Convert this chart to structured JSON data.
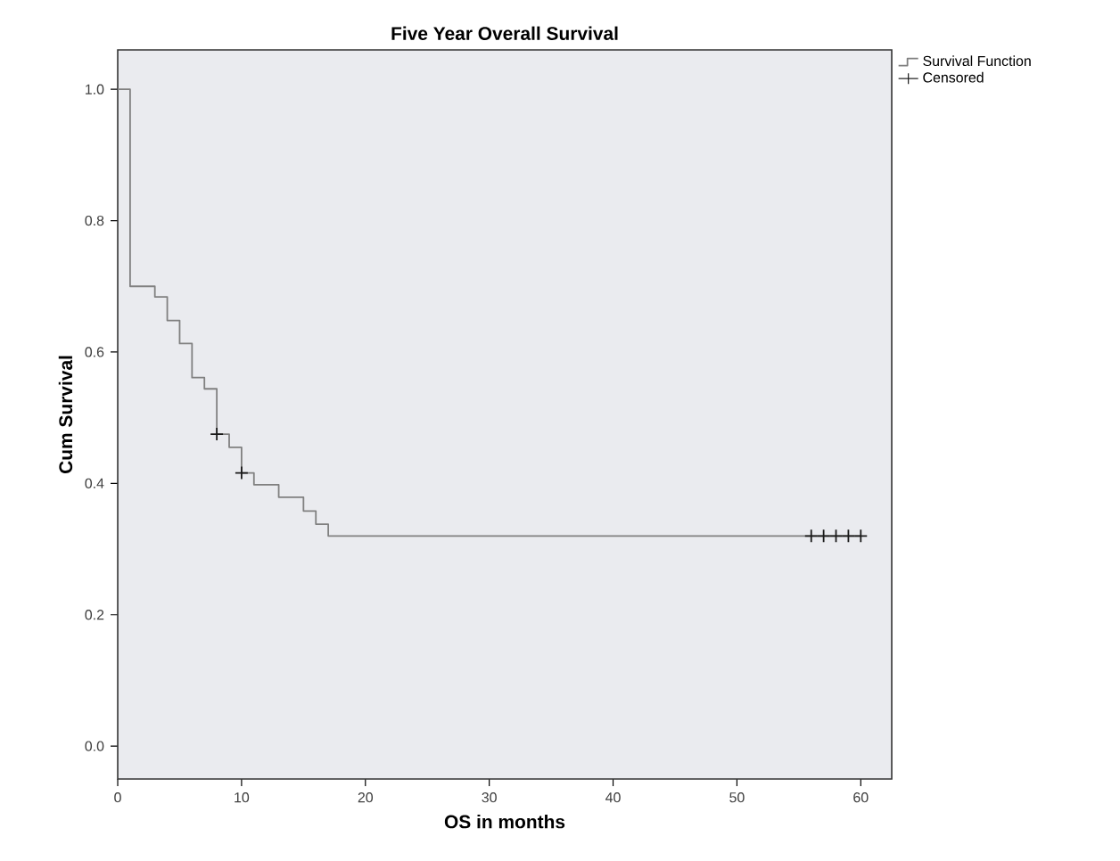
{
  "chart_data": {
    "type": "step",
    "title": "Five Year Overall Survival",
    "xlabel": "OS in months",
    "ylabel": "Cum Survival",
    "xlim": [
      0,
      62.5
    ],
    "ylim": [
      -0.05,
      1.06
    ],
    "xticks": [
      0,
      10,
      20,
      30,
      40,
      50,
      60
    ],
    "yticks": [
      {
        "value": 0,
        "label": "0.0"
      },
      {
        "value": 0.2,
        "label": "0.2"
      },
      {
        "value": 0.4,
        "label": "0.4"
      },
      {
        "value": 0.6,
        "label": "0.6"
      },
      {
        "value": 0.8,
        "label": "0.8"
      },
      {
        "value": 1.0,
        "label": "1.0"
      }
    ],
    "legend": "top right",
    "series": [
      {
        "name": "Survival Function",
        "color": "#808080",
        "marker": "none",
        "x": [
          0,
          1,
          3,
          4,
          5,
          6,
          7,
          8,
          9,
          10,
          11,
          13,
          15,
          16,
          17,
          60
        ],
        "values": [
          1.0,
          0.7,
          0.684,
          0.648,
          0.613,
          0.561,
          0.544,
          0.475,
          0.455,
          0.416,
          0.398,
          0.379,
          0.358,
          0.338,
          0.32,
          0.32
        ]
      },
      {
        "name": "Censored",
        "type": "scatter",
        "color": "#1a1a1a",
        "marker": "cross",
        "x": [
          8,
          10,
          56,
          57,
          58,
          59,
          60
        ],
        "values": [
          0.475,
          0.416,
          0.32,
          0.32,
          0.32,
          0.32,
          0.32
        ]
      }
    ]
  }
}
